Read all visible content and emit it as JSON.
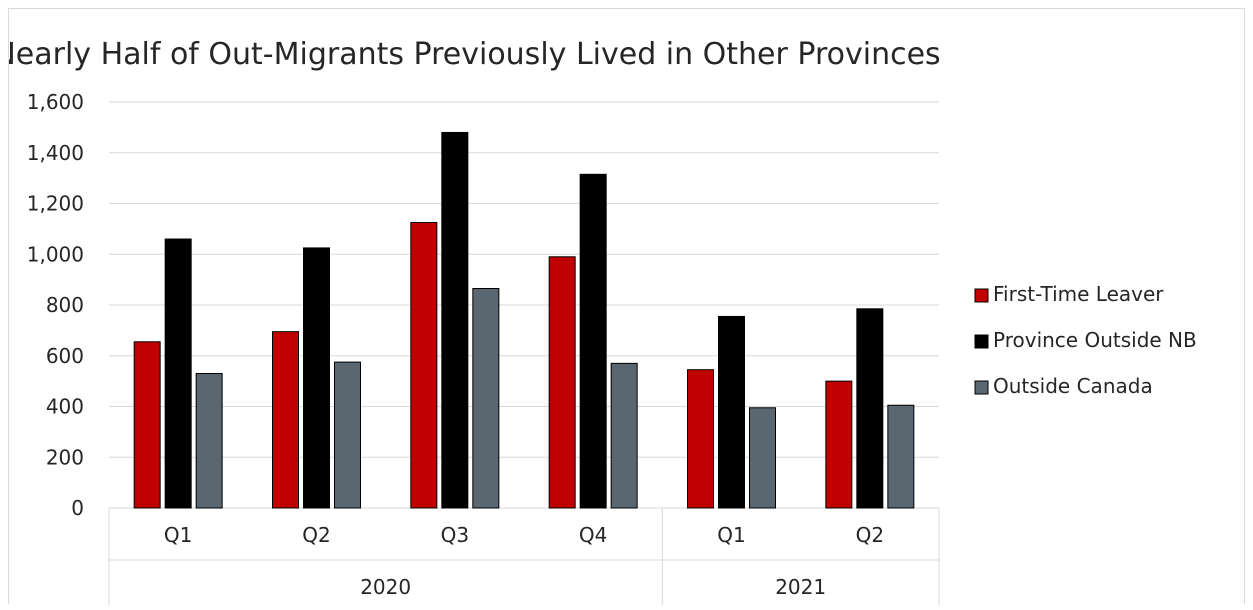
{
  "chart_data": {
    "type": "bar",
    "title": "Nearly Half of Out-Migrants Previously Lived in Other Provinces",
    "xlabel": "",
    "ylabel": "",
    "ylim": [
      0,
      1600
    ],
    "y_ticks": [
      "0",
      "200",
      "400",
      "600",
      "800",
      "1,000",
      "1,200",
      "1,400",
      "1,600"
    ],
    "y_tick_values": [
      0,
      200,
      400,
      600,
      800,
      1000,
      1200,
      1400,
      1600
    ],
    "grid": true,
    "legend_position": "right",
    "categories": [
      "Q1",
      "Q2",
      "Q3",
      "Q4",
      "Q1",
      "Q2"
    ],
    "groups": [
      {
        "label": "2020",
        "count": 4
      },
      {
        "label": "2021",
        "count": 2
      }
    ],
    "series": [
      {
        "name": "First-Time Leaver",
        "color": "#c00000",
        "values": [
          655,
          695,
          1125,
          990,
          545,
          500
        ]
      },
      {
        "name": "Province Outside NB",
        "color": "#000000",
        "values": [
          1060,
          1025,
          1480,
          1315,
          755,
          785
        ]
      },
      {
        "name": "Outside Canada",
        "color": "#5a6670",
        "values": [
          530,
          575,
          865,
          570,
          395,
          405
        ]
      }
    ]
  }
}
